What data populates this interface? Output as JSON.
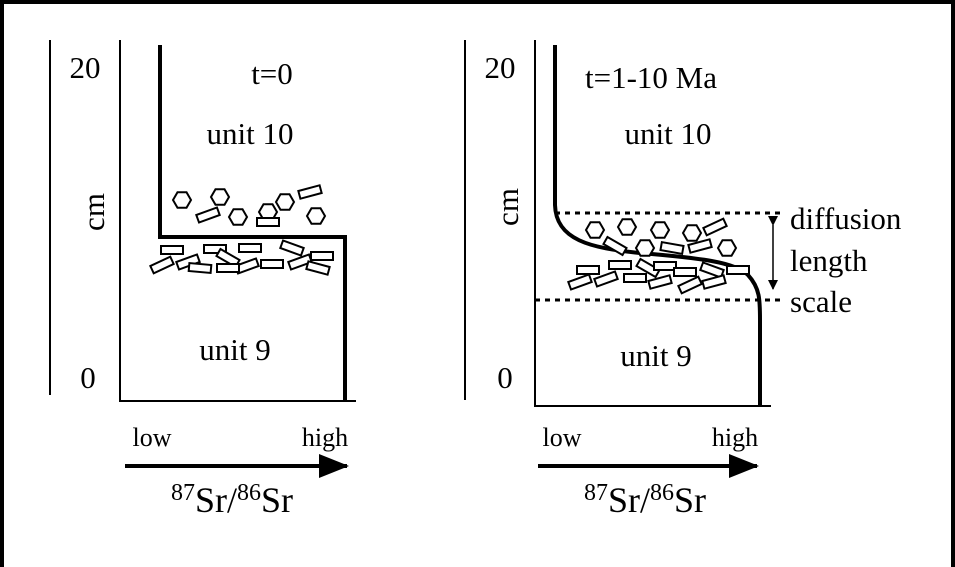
{
  "panels": [
    {
      "time": "t=0",
      "y_top": "20",
      "y_bottom": "0",
      "y_axis": "cm",
      "upper_unit": "unit 10",
      "lower_unit": "unit 9",
      "x_low": "low",
      "x_high": "high",
      "x_axis": {
        "mass1": "87",
        "element1": "Sr/",
        "mass2": "86",
        "element2": "Sr"
      }
    },
    {
      "time": "t=1-10 Ma",
      "y_top": "20",
      "y_bottom": "0",
      "y_axis": "cm",
      "upper_unit": "unit 10",
      "lower_unit": "unit 9",
      "x_low": "low",
      "x_high": "high",
      "x_axis": {
        "mass1": "87",
        "element1": "Sr/",
        "mass2": "86",
        "element2": "Sr"
      },
      "annotation": [
        "diffusion",
        "length",
        "scale"
      ]
    }
  ]
}
